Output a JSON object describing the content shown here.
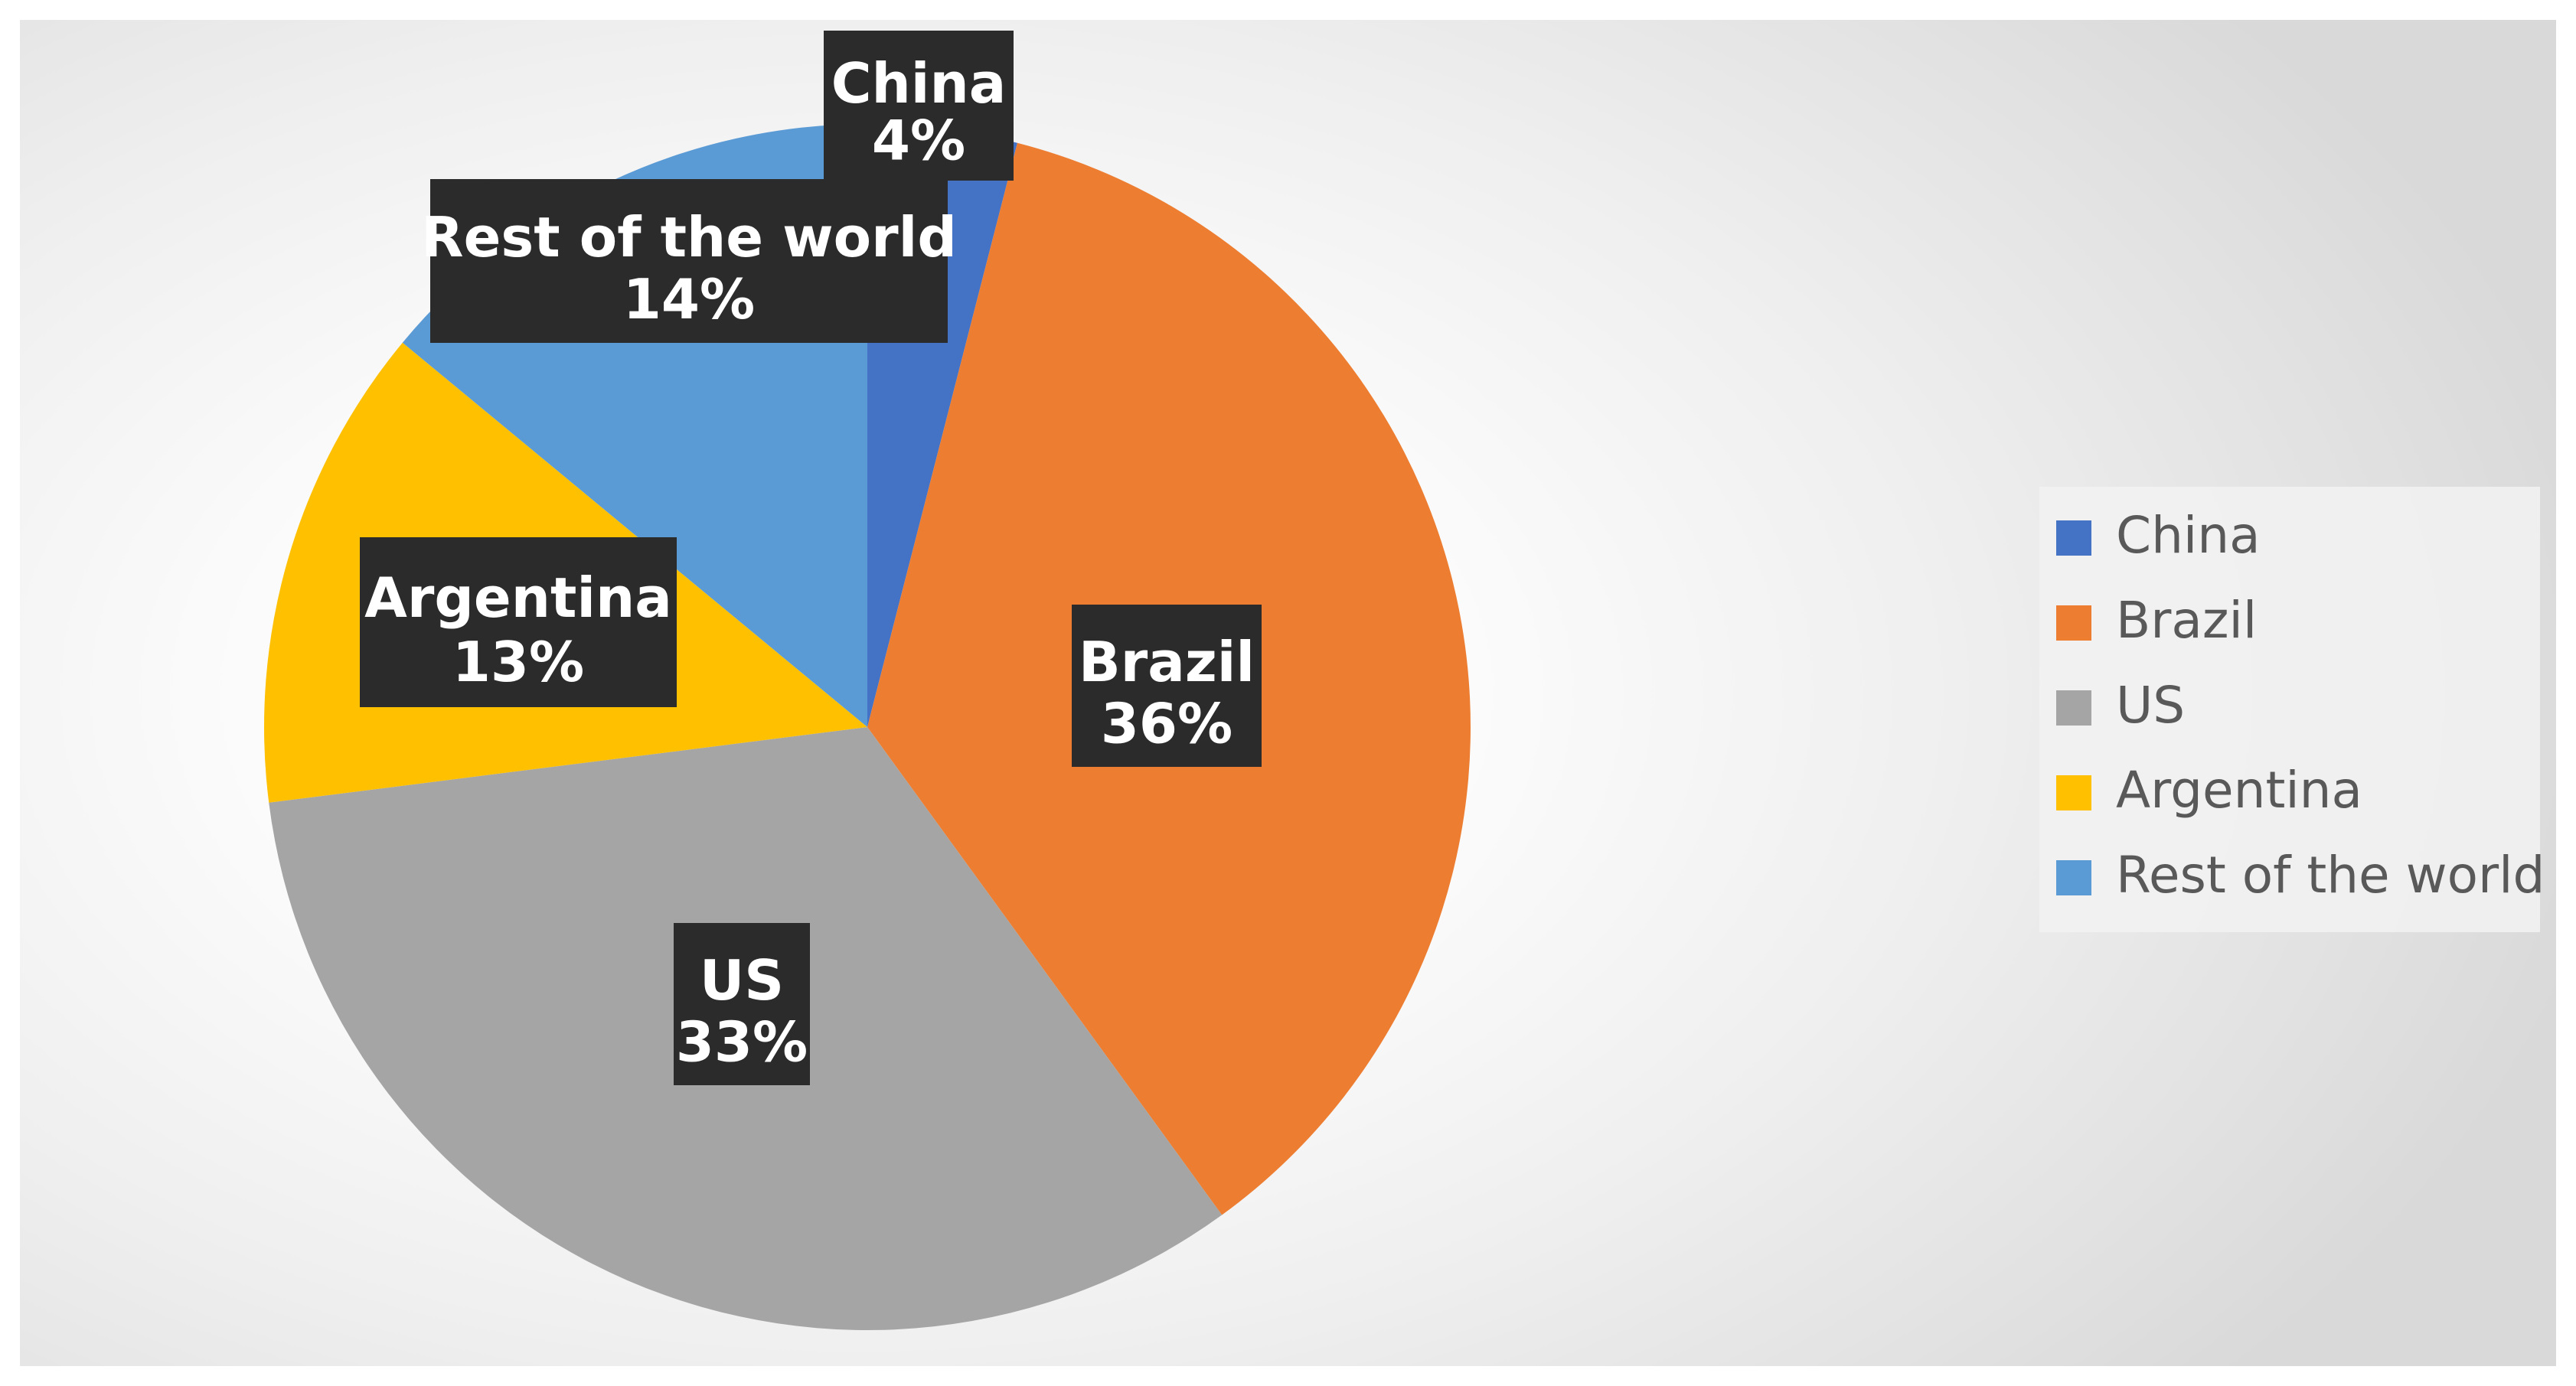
{
  "chart_data": {
    "type": "pie",
    "title": "",
    "slices": [
      {
        "label": "China",
        "value": 4,
        "display": "4%",
        "color": "#4472C4"
      },
      {
        "label": "Brazil",
        "value": 36,
        "display": "36%",
        "color": "#ED7D31"
      },
      {
        "label": "US",
        "value": 33,
        "display": "33%",
        "color": "#A5A5A5"
      },
      {
        "label": "Argentina",
        "value": 13,
        "display": "13%",
        "color": "#FFC000"
      },
      {
        "label": "Rest of the world",
        "value": 14,
        "display": "14%",
        "color": "#5B9BD5"
      }
    ],
    "legend": {
      "position": "right",
      "entries": [
        "China",
        "Brazil",
        "US",
        "Argentina",
        "Rest of the world"
      ]
    }
  }
}
